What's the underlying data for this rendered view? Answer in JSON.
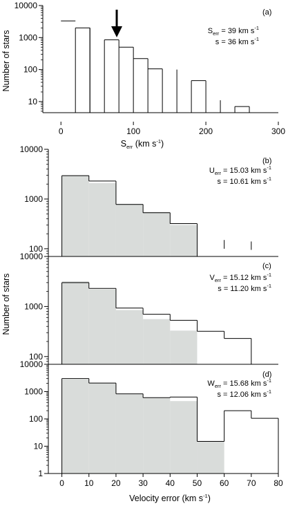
{
  "chart_data": [
    {
      "id": "a",
      "type": "bar",
      "panel_label": "(a)",
      "xlabel_main": "S",
      "xlabel_sub": "err",
      "xlabel_unit": " (km s",
      "xlabel_sup": "-1",
      "xlabel_close": ")",
      "ylabel": "Number of stars",
      "xlim": [
        -25,
        300
      ],
      "ylim": [
        4.5,
        10000
      ],
      "yscale": "log",
      "xticks": [
        0,
        100,
        200,
        300
      ],
      "xtick_labels": [
        "0",
        "100",
        "200",
        "300"
      ],
      "yticks": [
        10,
        100,
        1000,
        10000
      ],
      "ytick_labels": [
        "10",
        "100",
        "1000",
        "10000"
      ],
      "bins": [
        {
          "x0": 0,
          "x1": 20,
          "value": 3300
        },
        {
          "x0": 20,
          "x1": 40,
          "value": 2000
        },
        {
          "x0": 60,
          "x1": 80,
          "value": 850
        },
        {
          "x0": 80,
          "x1": 100,
          "value": 500
        },
        {
          "x0": 100,
          "x1": 120,
          "value": 220
        },
        {
          "x0": 120,
          "x1": 140,
          "value": 105
        },
        {
          "x0": 140,
          "x1": 160,
          "value": 0
        },
        {
          "x0": 160,
          "x1": 180,
          "value": 0
        },
        {
          "x0": 180,
          "x1": 200,
          "value": 45
        },
        {
          "x0": 200,
          "x1": 220,
          "value": 0
        },
        {
          "x0": 240,
          "x1": 260,
          "value": 7
        }
      ],
      "open_bins": [
        0
      ],
      "lines": [
        {
          "x": 40,
          "value": 2000
        },
        {
          "x": 160,
          "value": 100
        },
        {
          "x": 220,
          "value": 11
        }
      ],
      "arrow_x": 77,
      "annotation": [
        {
          "main": "S",
          "sub": "err",
          "rest": " = 39 km s",
          "sup": "-1"
        },
        {
          "main": "s = 36 km s",
          "sub": "",
          "rest": "",
          "sup": "-1"
        }
      ]
    },
    {
      "id": "b",
      "type": "bar",
      "panel_label": "(b)",
      "ylim": [
        70,
        10000
      ],
      "yscale": "log",
      "xlim": [
        -5,
        80
      ],
      "yticks": [
        100,
        1000,
        10000
      ],
      "ytick_labels": [
        "100",
        "1000",
        "10000"
      ],
      "filled_bins": [
        {
          "x0": 0,
          "x1": 10,
          "value": 3000
        },
        {
          "x0": 10,
          "x1": 20,
          "value": 2100
        },
        {
          "x0": 20,
          "x1": 30,
          "value": 800
        },
        {
          "x0": 30,
          "x1": 40,
          "value": 550
        },
        {
          "x0": 40,
          "x1": 50,
          "value": 300
        }
      ],
      "outline_bins": [
        {
          "x0": 0,
          "x1": 10,
          "value": 2950
        },
        {
          "x0": 10,
          "x1": 20,
          "value": 2300
        },
        {
          "x0": 20,
          "x1": 30,
          "value": 780
        },
        {
          "x0": 30,
          "x1": 40,
          "value": 530
        },
        {
          "x0": 40,
          "x1": 50,
          "value": 320
        }
      ],
      "lines": [
        {
          "x": 60,
          "y0": 100,
          "y1": 150
        },
        {
          "x": 70,
          "y0": 95,
          "y1": 140
        }
      ],
      "annotation": [
        {
          "main": "U",
          "sub": "err",
          "rest": " = 15.03 km s",
          "sup": "-1"
        },
        {
          "main": "s = 10.61 km s",
          "sub": "",
          "rest": "",
          "sup": "-1"
        }
      ]
    },
    {
      "id": "c",
      "type": "bar",
      "panel_label": "(c)",
      "ylabel": "Number of stars",
      "ylim": [
        70,
        10000
      ],
      "yscale": "log",
      "xlim": [
        -5,
        80
      ],
      "yticks": [
        100,
        1000,
        10000
      ],
      "ytick_labels": [
        "100",
        "1000",
        "10000"
      ],
      "filled_bins": [
        {
          "x0": 0,
          "x1": 10,
          "value": 3200
        },
        {
          "x0": 10,
          "x1": 20,
          "value": 2200
        },
        {
          "x0": 20,
          "x1": 30,
          "value": 850
        },
        {
          "x0": 30,
          "x1": 40,
          "value": 560
        },
        {
          "x0": 40,
          "x1": 50,
          "value": 330
        }
      ],
      "outline_bins": [
        {
          "x0": 0,
          "x1": 10,
          "value": 3000
        },
        {
          "x0": 10,
          "x1": 20,
          "value": 2300
        },
        {
          "x0": 20,
          "x1": 30,
          "value": 930
        },
        {
          "x0": 30,
          "x1": 40,
          "value": 700
        },
        {
          "x0": 40,
          "x1": 50,
          "value": 530
        },
        {
          "x0": 50,
          "x1": 60,
          "value": 320
        },
        {
          "x0": 60,
          "x1": 70,
          "value": 230
        }
      ],
      "lines": [],
      "annotation": [
        {
          "main": "V",
          "sub": "err",
          "rest": " = 15.12 km s",
          "sup": "-1"
        },
        {
          "main": "s = 11.20 km s",
          "sub": "",
          "rest": "",
          "sup": "-1"
        }
      ]
    },
    {
      "id": "d",
      "type": "bar",
      "panel_label": "(d)",
      "xlabel": "Velocity error (km s",
      "xlabel_sup": "-1",
      "xlabel_close": ")",
      "ylim": [
        1,
        10000
      ],
      "yscale": "log",
      "xlim": [
        -5,
        80
      ],
      "xticks": [
        0,
        10,
        20,
        30,
        40,
        50,
        60,
        70,
        80
      ],
      "xtick_labels": [
        "0",
        "10",
        "20",
        "30",
        "40",
        "50",
        "60",
        "70",
        "80"
      ],
      "yticks": [
        1,
        10,
        100,
        1000,
        10000
      ],
      "ytick_labels": [
        "1",
        "10",
        "100",
        "1000",
        "10000"
      ],
      "filled_bins": [
        {
          "x0": 0,
          "x1": 10,
          "value": 2800
        },
        {
          "x0": 10,
          "x1": 20,
          "value": 2000
        },
        {
          "x0": 20,
          "x1": 30,
          "value": 800
        },
        {
          "x0": 30,
          "x1": 40,
          "value": 580
        },
        {
          "x0": 40,
          "x1": 50,
          "value": 450
        },
        {
          "x0": 50,
          "x1": 60,
          "value": 15
        }
      ],
      "outline_bins": [
        {
          "x0": 0,
          "x1": 10,
          "value": 3000
        },
        {
          "x0": 10,
          "x1": 20,
          "value": 2050
        },
        {
          "x0": 20,
          "x1": 30,
          "value": 830
        },
        {
          "x0": 30,
          "x1": 40,
          "value": 600
        },
        {
          "x0": 40,
          "x1": 50,
          "value": 630
        },
        {
          "x0": 50,
          "x1": 60,
          "value": 15
        },
        {
          "x0": 60,
          "x1": 70,
          "value": 200
        },
        {
          "x0": 70,
          "x1": 80,
          "value": 105
        }
      ],
      "lines": [],
      "annotation": [
        {
          "main": "W",
          "sub": "err",
          "rest": " = 15.68 km s",
          "sup": "-1"
        },
        {
          "main": "s = 12.06 km s",
          "sub": "",
          "rest": "",
          "sup": "-1"
        }
      ]
    }
  ],
  "colors": {
    "fill": "#d9dcda",
    "line": "#000000"
  }
}
